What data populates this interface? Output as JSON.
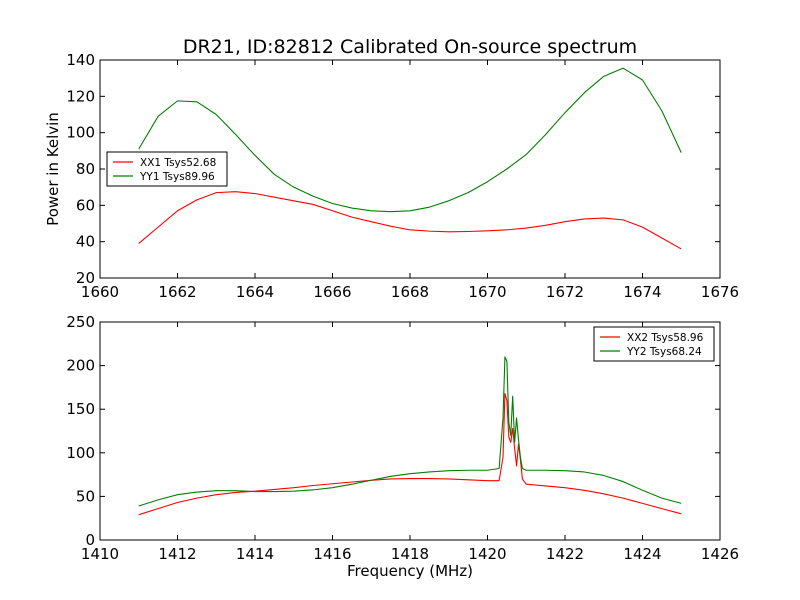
{
  "title": "DR21, ID:82812 Calibrated On-source spectrum",
  "colors": {
    "xx": "#ff0000",
    "yy": "#008000",
    "axes": "#000000",
    "background": "#ffffff"
  },
  "chart_data": [
    {
      "type": "line",
      "title": "DR21, ID:82812 Calibrated On-source spectrum",
      "xlabel": "",
      "ylabel": "Power in Kelvin",
      "xlim": [
        1660,
        1676
      ],
      "ylim": [
        20,
        140
      ],
      "xticks": [
        1660,
        1662,
        1664,
        1666,
        1668,
        1670,
        1672,
        1674,
        1676
      ],
      "yticks": [
        20,
        40,
        60,
        80,
        100,
        120,
        140
      ],
      "grid": false,
      "legend": "center-left",
      "series": [
        {
          "name": "XX1 Tsys52.68",
          "color": "#ff0000",
          "x": [
            1661.0,
            1661.5,
            1662.0,
            1662.5,
            1663.0,
            1663.5,
            1664.0,
            1664.5,
            1665.0,
            1665.5,
            1666.0,
            1666.5,
            1667.0,
            1667.5,
            1668.0,
            1668.5,
            1669.0,
            1669.5,
            1670.0,
            1670.5,
            1671.0,
            1671.5,
            1672.0,
            1672.5,
            1673.0,
            1673.5,
            1674.0,
            1674.5,
            1675.0
          ],
          "y": [
            39,
            48,
            57,
            63,
            67,
            67.5,
            66.5,
            64.5,
            62.5,
            60.5,
            57,
            53.5,
            51,
            48.5,
            46.5,
            45.8,
            45.4,
            45.6,
            46,
            46.5,
            47.5,
            49,
            51,
            52.5,
            53,
            52,
            48,
            42,
            36
          ]
        },
        {
          "name": "YY1 Tsys89.96",
          "color": "#008000",
          "x": [
            1661.0,
            1661.5,
            1662.0,
            1662.5,
            1663.0,
            1663.5,
            1664.0,
            1664.5,
            1665.0,
            1665.5,
            1666.0,
            1666.5,
            1667.0,
            1667.5,
            1668.0,
            1668.5,
            1669.0,
            1669.5,
            1670.0,
            1670.5,
            1671.0,
            1671.5,
            1672.0,
            1672.5,
            1673.0,
            1673.5,
            1674.0,
            1674.5,
            1675.0
          ],
          "y": [
            91,
            109,
            117.5,
            117,
            110,
            99,
            87.5,
            77,
            70,
            65,
            61,
            58.5,
            57,
            56.5,
            57,
            59,
            62.5,
            67,
            73,
            80,
            88,
            99,
            111,
            122,
            131,
            135.5,
            129,
            112,
            89
          ]
        }
      ]
    },
    {
      "type": "line",
      "title": "",
      "xlabel": "Frequency (MHz)",
      "ylabel": "",
      "xlim": [
        1410,
        1426
      ],
      "ylim": [
        0,
        250
      ],
      "xticks": [
        1410,
        1412,
        1414,
        1416,
        1418,
        1420,
        1422,
        1424,
        1426
      ],
      "yticks": [
        0,
        50,
        100,
        150,
        200,
        250
      ],
      "grid": false,
      "legend": "top-right",
      "series": [
        {
          "name": "XX2 Tsys58.96",
          "color": "#ff0000",
          "x": [
            1411.0,
            1411.5,
            1412.0,
            1412.5,
            1413.0,
            1413.5,
            1414.0,
            1414.5,
            1415.0,
            1415.5,
            1416.0,
            1416.5,
            1417.0,
            1417.5,
            1418.0,
            1418.5,
            1419.0,
            1419.5,
            1420.0,
            1420.3,
            1420.4,
            1420.45,
            1420.5,
            1420.55,
            1420.6,
            1420.65,
            1420.7,
            1420.75,
            1420.8,
            1420.85,
            1420.9,
            1421.0,
            1421.5,
            1422.0,
            1422.5,
            1423.0,
            1423.5,
            1424.0,
            1424.5,
            1425.0
          ],
          "y": [
            29,
            36,
            43,
            48,
            52,
            54.5,
            56,
            58,
            60,
            62.5,
            64.5,
            66.5,
            68.5,
            70,
            70.5,
            70.5,
            70,
            69,
            68,
            68,
            95,
            168,
            160,
            118,
            112,
            128,
            105,
            85,
            110,
            92,
            70,
            64,
            62,
            60,
            57,
            53,
            48,
            42,
            36,
            30
          ]
        },
        {
          "name": "YY2 Tsys68.24",
          "color": "#008000",
          "x": [
            1411.0,
            1411.5,
            1412.0,
            1412.5,
            1413.0,
            1413.5,
            1414.0,
            1414.5,
            1415.0,
            1415.5,
            1416.0,
            1416.5,
            1417.0,
            1417.5,
            1418.0,
            1418.5,
            1419.0,
            1419.5,
            1420.0,
            1420.3,
            1420.4,
            1420.45,
            1420.5,
            1420.55,
            1420.6,
            1420.65,
            1420.7,
            1420.75,
            1420.8,
            1420.85,
            1420.9,
            1421.0,
            1421.5,
            1422.0,
            1422.5,
            1423.0,
            1423.5,
            1424.0,
            1424.5,
            1425.0
          ],
          "y": [
            39,
            46,
            52,
            55,
            56.5,
            56.5,
            55.5,
            55.5,
            56,
            57.5,
            60,
            64,
            68.5,
            73,
            76,
            78,
            79.5,
            80,
            80,
            82,
            140,
            210,
            205,
            135,
            120,
            165,
            112,
            140,
            115,
            95,
            82,
            80,
            80,
            79.5,
            78,
            74,
            67,
            57,
            48,
            42
          ]
        }
      ]
    }
  ]
}
